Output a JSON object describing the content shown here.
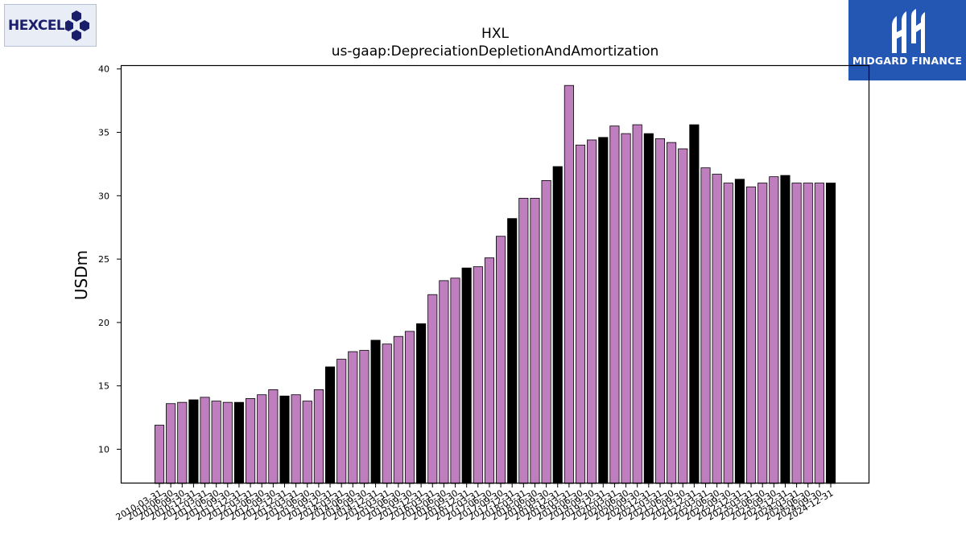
{
  "header": {
    "company_logo_text": "HEXCEL",
    "brand_name": "MIDGARD FINANCE"
  },
  "chart_data": {
    "type": "bar",
    "title": "HXL",
    "subtitle": "us-gaap:DepreciationDepletionAndAmortization",
    "xlabel": "",
    "ylabel": "USDm",
    "ylim": [
      7.3,
      40.3
    ],
    "yticks": [
      10,
      15,
      20,
      25,
      30,
      35,
      40
    ],
    "grid": false,
    "colors": {
      "quarter": "#bf7fbf",
      "year_end": "#000000",
      "edge": "#000000"
    },
    "categories": [
      "2010-03-31",
      "2010-06-30",
      "2010-09-30",
      "2010-12-31",
      "2011-03-31",
      "2011-06-30",
      "2011-09-30",
      "2011-12-31",
      "2012-03-31",
      "2012-06-30",
      "2012-09-30",
      "2012-12-31",
      "2013-03-31",
      "2013-06-30",
      "2013-09-30",
      "2013-12-31",
      "2014-03-31",
      "2014-06-30",
      "2014-09-30",
      "2014-12-31",
      "2015-03-31",
      "2015-06-30",
      "2015-09-30",
      "2015-12-31",
      "2016-03-31",
      "2016-06-30",
      "2016-09-30",
      "2016-12-31",
      "2017-03-31",
      "2017-06-30",
      "2017-09-30",
      "2017-12-31",
      "2018-03-31",
      "2018-06-30",
      "2018-09-30",
      "2018-12-31",
      "2019-03-31",
      "2019-06-30",
      "2019-09-30",
      "2019-12-31",
      "2020-03-31",
      "2020-06-30",
      "2020-09-30",
      "2020-12-31",
      "2021-03-31",
      "2021-06-30",
      "2021-09-30",
      "2021-12-31",
      "2022-03-31",
      "2022-06-30",
      "2022-09-30",
      "2022-12-31",
      "2023-03-31",
      "2023-06-30",
      "2023-09-30",
      "2023-12-31",
      "2024-03-31",
      "2024-06-30",
      "2024-09-30",
      "2024-12-31"
    ],
    "values": [
      11.9,
      13.6,
      13.7,
      13.9,
      14.1,
      13.8,
      13.7,
      13.7,
      14.0,
      14.3,
      14.7,
      14.2,
      14.3,
      13.8,
      14.7,
      16.5,
      17.1,
      17.7,
      17.8,
      18.6,
      18.3,
      18.9,
      19.3,
      19.9,
      22.2,
      23.3,
      23.5,
      24.3,
      24.4,
      25.1,
      26.8,
      28.2,
      29.8,
      29.8,
      31.2,
      32.3,
      38.7,
      34.0,
      34.4,
      34.6,
      35.5,
      34.9,
      35.6,
      34.9,
      34.5,
      34.2,
      33.7,
      35.6,
      32.2,
      31.7,
      31.0,
      31.3,
      30.7,
      31.0,
      31.5,
      31.6,
      31.0,
      31.0,
      31.0,
      31.0
    ]
  }
}
